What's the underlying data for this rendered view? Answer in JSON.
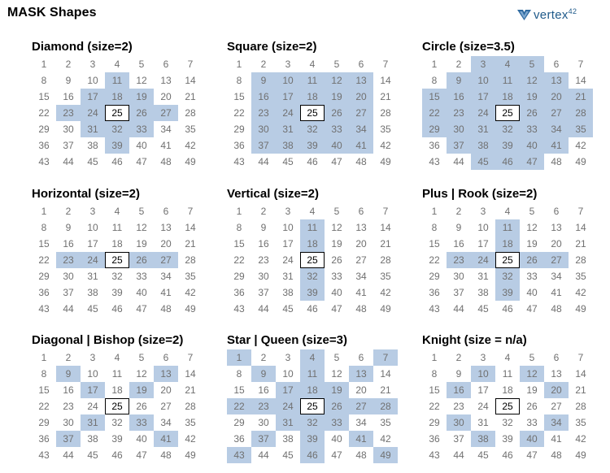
{
  "page": {
    "title": "MASK Shapes",
    "logo_text": "vertex",
    "logo_sup": "42",
    "logo_icon": "vertex42-logo-icon"
  },
  "colors": {
    "highlight": "#b8cce4",
    "number": "#707070",
    "center_border": "#000000"
  },
  "grid_numbers": [
    1,
    2,
    3,
    4,
    5,
    6,
    7,
    8,
    9,
    10,
    11,
    12,
    13,
    14,
    15,
    16,
    17,
    18,
    19,
    20,
    21,
    22,
    23,
    24,
    25,
    26,
    27,
    28,
    29,
    30,
    31,
    32,
    33,
    34,
    35,
    36,
    37,
    38,
    39,
    40,
    41,
    42,
    43,
    44,
    45,
    46,
    47,
    48,
    49
  ],
  "center_number": 25,
  "panels": [
    {
      "id": "diamond",
      "title": "Diamond (size=2)",
      "highlighted": [
        11,
        17,
        18,
        19,
        23,
        24,
        26,
        27,
        31,
        32,
        33,
        39
      ]
    },
    {
      "id": "square",
      "title": "Square (size=2)",
      "highlighted": [
        9,
        10,
        11,
        12,
        13,
        16,
        17,
        18,
        19,
        20,
        23,
        24,
        26,
        27,
        30,
        31,
        32,
        33,
        34,
        37,
        38,
        39,
        40,
        41
      ]
    },
    {
      "id": "circle",
      "title": "Circle (size=3.5)",
      "highlighted": [
        3,
        4,
        5,
        9,
        10,
        11,
        12,
        13,
        15,
        16,
        17,
        18,
        19,
        20,
        21,
        22,
        23,
        24,
        26,
        27,
        28,
        29,
        30,
        31,
        32,
        33,
        34,
        35,
        37,
        38,
        39,
        40,
        41,
        45,
        46,
        47
      ]
    },
    {
      "id": "horizontal",
      "title": "Horizontal (size=2)",
      "highlighted": [
        23,
        24,
        26,
        27
      ]
    },
    {
      "id": "vertical",
      "title": "Vertical (size=2)",
      "highlighted": [
        11,
        18,
        32,
        39
      ]
    },
    {
      "id": "plus-rook",
      "title": "Plus | Rook (size=2)",
      "highlighted": [
        11,
        18,
        23,
        24,
        26,
        27,
        32,
        39
      ]
    },
    {
      "id": "diagonal-bishop",
      "title": "Diagonal | Bishop (size=2)",
      "highlighted": [
        9,
        13,
        17,
        19,
        31,
        33,
        37,
        41
      ]
    },
    {
      "id": "star-queen",
      "title": "Star | Queen (size=3)",
      "highlighted": [
        1,
        4,
        7,
        9,
        11,
        13,
        17,
        18,
        19,
        22,
        23,
        24,
        26,
        27,
        28,
        31,
        32,
        33,
        37,
        39,
        41,
        43,
        46,
        49
      ]
    },
    {
      "id": "knight",
      "title": "Knight (size = n/a)",
      "highlighted": [
        10,
        12,
        16,
        20,
        30,
        34,
        38,
        40
      ]
    }
  ]
}
